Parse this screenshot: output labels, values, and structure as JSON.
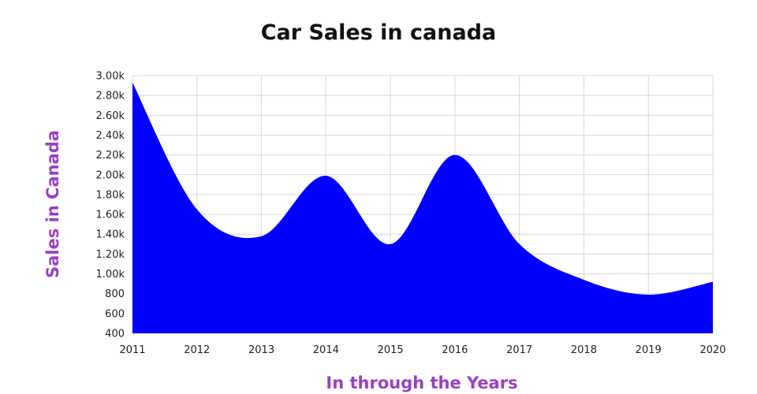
{
  "chart_data": {
    "type": "area",
    "title": "Car Sales in canada",
    "xlabel": "In through the Years",
    "ylabel": "Sales in Canada",
    "x": [
      "2011",
      "2012",
      "2013",
      "2014",
      "2015",
      "2016",
      "2017",
      "2018",
      "2019",
      "2020"
    ],
    "series": [
      {
        "values": [
          2930,
          1650,
          1380,
          1990,
          1300,
          2200,
          1300,
          940,
          790,
          920
        ]
      }
    ],
    "ylim": [
      400,
      3000
    ],
    "yticks": [
      400,
      600,
      800,
      1000,
      1200,
      1400,
      1600,
      1800,
      2000,
      2200,
      2400,
      2600,
      2800,
      3000
    ],
    "ytick_labels": [
      "400",
      "600",
      "800",
      "1.00k",
      "1.20k",
      "1.40k",
      "1.60k",
      "1.80k",
      "2.00k",
      "2.20k",
      "2.40k",
      "2.60k",
      "2.80k",
      "3.00k"
    ],
    "grid": true,
    "colors": {
      "fill": "#0000ff",
      "axis_titles": "#9b3fc4",
      "grid": "#d9d9d9"
    }
  }
}
